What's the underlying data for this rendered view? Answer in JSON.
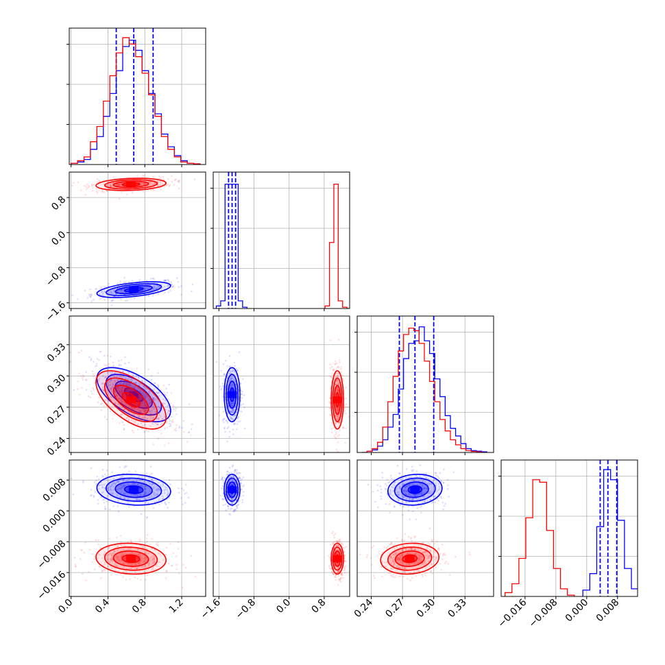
{
  "chart_data": {
    "type": "corner",
    "grid": true,
    "colors": {
      "blue": "#0000ff",
      "red": "#ff0000",
      "grid": "#b0b0b0"
    },
    "parameters": [
      {
        "ticks": [
          0.0,
          0.4,
          0.8,
          1.2
        ],
        "tick_labels": [
          "0.0",
          "0.4",
          "0.8",
          "1.2"
        ],
        "range": [
          -0.02,
          1.46
        ]
      },
      {
        "ticks": [
          -1.6,
          -0.8,
          0.0,
          0.8
        ],
        "tick_labels": [
          "−1.6",
          "−0.8",
          "0.0",
          "0.8"
        ],
        "range": [
          -1.73,
          1.38
        ]
      },
      {
        "ticks": [
          0.24,
          0.27,
          0.3,
          0.33
        ],
        "tick_labels": [
          "0.24",
          "0.27",
          "0.30",
          "0.33"
        ],
        "range": [
          0.2265,
          0.3575
        ]
      },
      {
        "ticks": [
          -0.016,
          -0.008,
          0.0,
          0.008
        ],
        "tick_labels": [
          "−0.016",
          "−0.008",
          "0.000",
          "0.008"
        ],
        "range": [
          -0.0222,
          0.0132
        ]
      }
    ],
    "series": [
      {
        "color": "#0000ff",
        "quantiles": [
          [
            0.49,
            0.68,
            0.89
          ],
          [
            -1.38,
            -1.3,
            -1.22
          ],
          [
            0.267,
            0.282,
            0.3
          ],
          [
            0.0035,
            0.0055,
            0.0078
          ]
        ],
        "means": [
          0.68,
          -1.3,
          0.282,
          0.0055
        ],
        "sds": [
          0.2,
          0.09,
          0.013,
          0.002
        ],
        "corr": [
          [
            0,
            0.5,
            -0.6,
            -0.12
          ],
          [
            0,
            0,
            0,
            0
          ],
          [
            0,
            0,
            0,
            0.1
          ],
          [
            0,
            0,
            0,
            0
          ]
        ],
        "diagonal_hist": [
          {
            "edges": [
              0.0,
              0.07,
              0.14,
              0.21,
              0.28,
              0.35,
              0.42,
              0.49,
              0.56,
              0.63,
              0.7,
              0.77,
              0.84,
              0.91,
              0.98,
              1.05,
              1.12,
              1.19,
              1.26,
              1.33,
              1.4
            ],
            "counts": [
              0.01,
              0.02,
              0.04,
              0.12,
              0.22,
              0.38,
              0.56,
              0.74,
              0.93,
              0.98,
              0.9,
              0.74,
              0.56,
              0.4,
              0.24,
              0.14,
              0.07,
              0.03,
              0.01,
              0.005
            ]
          },
          {
            "edges": [
              -1.66,
              -1.56,
              -1.46,
              -1.36,
              -1.26,
              -1.16,
              -1.06,
              -0.96
            ],
            "counts": [
              0.02,
              0.06,
              0.98,
              0.98,
              0.98,
              0.06,
              0.01
            ]
          },
          {
            "edges": [
              0.231,
              0.236,
              0.241,
              0.246,
              0.251,
              0.256,
              0.261,
              0.266,
              0.271,
              0.276,
              0.281,
              0.286,
              0.291,
              0.296,
              0.301,
              0.306,
              0.311,
              0.316,
              0.321,
              0.326,
              0.331,
              0.336,
              0.341,
              0.346,
              0.351
            ],
            "counts": [
              0.0,
              0.01,
              0.02,
              0.05,
              0.1,
              0.2,
              0.3,
              0.5,
              0.74,
              0.86,
              0.88,
              0.99,
              0.88,
              0.78,
              0.58,
              0.44,
              0.29,
              0.19,
              0.13,
              0.07,
              0.03,
              0.015,
              0.01,
              0.005
            ]
          },
          {
            "edges": [
              -0.001,
              0.0008,
              0.0026,
              0.0044,
              0.0062,
              0.008,
              0.0098,
              0.0116,
              0.0134
            ],
            "counts": [
              0.05,
              0.18,
              0.55,
              1.0,
              0.92,
              0.6,
              0.22,
              0.06
            ]
          }
        ]
      },
      {
        "color": "#ff0000",
        "quantiles": null,
        "means": [
          0.65,
          1.1,
          0.277,
          -0.0124
        ],
        "sds": [
          0.19,
          0.07,
          0.014,
          0.002
        ],
        "corr": [
          [
            0,
            0.2,
            -0.6,
            -0.1
          ],
          [
            0,
            0,
            0,
            0
          ],
          [
            0,
            0,
            0,
            0.1
          ],
          [
            0,
            0,
            0,
            0
          ]
        ],
        "diagonal_hist": [
          {
            "edges": [
              0.0,
              0.07,
              0.14,
              0.21,
              0.28,
              0.35,
              0.42,
              0.49,
              0.56,
              0.63,
              0.7,
              0.77,
              0.84,
              0.91,
              0.98,
              1.05,
              1.12,
              1.19,
              1.26,
              1.33,
              1.4
            ],
            "counts": [
              0.01,
              0.03,
              0.06,
              0.18,
              0.3,
              0.5,
              0.7,
              0.88,
              1.0,
              0.95,
              0.85,
              0.72,
              0.55,
              0.38,
              0.22,
              0.12,
              0.06,
              0.02,
              0.01,
              0.005
            ]
          },
          {
            "edges": [
              0.82,
              0.92,
              1.02,
              1.12,
              1.22,
              1.32,
              1.42
            ],
            "counts": [
              0.02,
              0.52,
              0.98,
              0.06,
              0.01,
              0.0
            ]
          },
          {
            "edges": [
              0.231,
              0.236,
              0.241,
              0.246,
              0.251,
              0.256,
              0.261,
              0.266,
              0.271,
              0.276,
              0.281,
              0.286,
              0.291,
              0.296,
              0.301,
              0.306,
              0.311,
              0.316,
              0.321,
              0.326,
              0.331,
              0.336,
              0.341,
              0.346,
              0.351
            ],
            "counts": [
              0.0,
              0.01,
              0.03,
              0.08,
              0.2,
              0.4,
              0.6,
              0.8,
              0.93,
              0.98,
              0.96,
              0.86,
              0.72,
              0.56,
              0.4,
              0.26,
              0.17,
              0.1,
              0.06,
              0.03,
              0.015,
              0.008,
              0.004,
              0.0
            ]
          },
          {
            "edges": [
              -0.0212,
              -0.0194,
              -0.0176,
              -0.0158,
              -0.014,
              -0.0122,
              -0.0104,
              -0.0086,
              -0.0068,
              -0.005,
              -0.0032
            ],
            "counts": [
              0.03,
              0.1,
              0.3,
              0.62,
              0.92,
              0.9,
              0.52,
              0.22,
              0.06,
              0.01
            ]
          }
        ]
      }
    ]
  }
}
